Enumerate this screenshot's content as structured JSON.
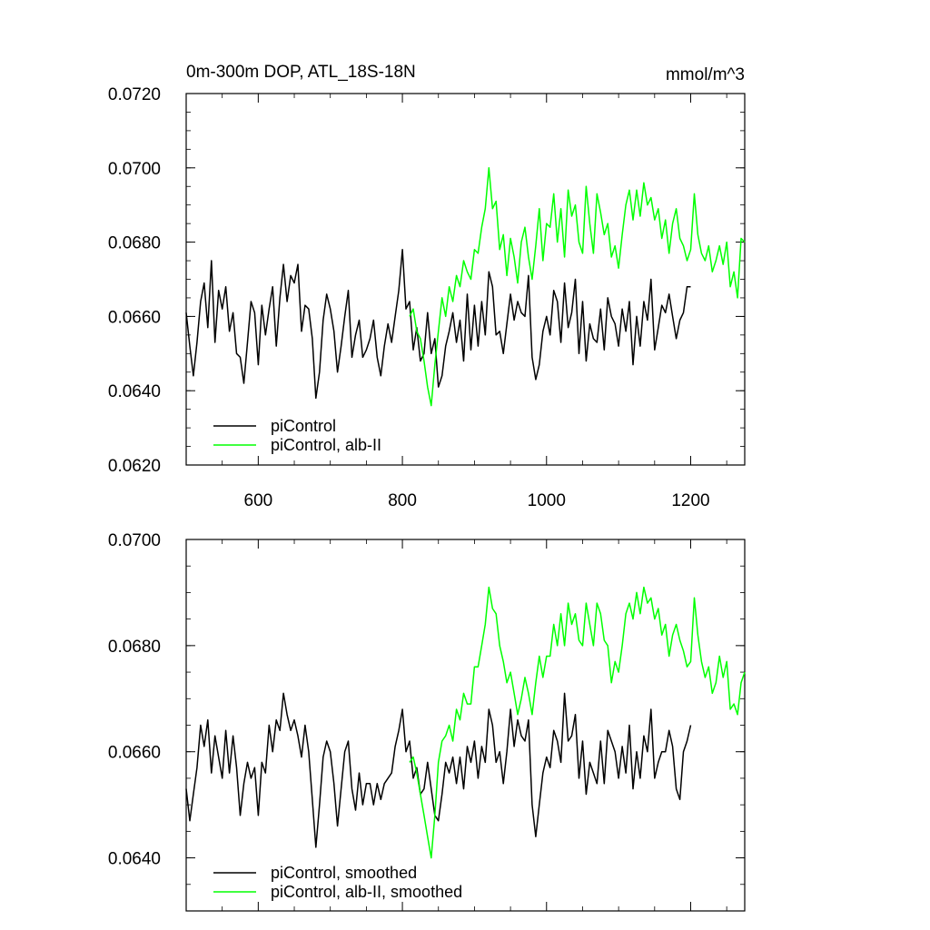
{
  "chart_data": [
    {
      "type": "line",
      "title": "0m-300m DOP, ATL_18S-18N",
      "units": "mmol/m^3",
      "xlim": [
        500,
        1275
      ],
      "ylim": [
        0.062,
        0.072
      ],
      "x_ticks": [
        600,
        800,
        1000,
        1200
      ],
      "x_tick_labels": [
        "600",
        "800",
        "1000",
        "1200"
      ],
      "y_ticks": [
        0.062,
        0.064,
        0.066,
        0.068,
        0.07,
        0.072
      ],
      "y_tick_labels": [
        "0.0620",
        "0.0640",
        "0.0660",
        "0.0680",
        "0.0700",
        "0.0720"
      ],
      "legend": [
        "piControl",
        "piControl, alb-II"
      ],
      "legend_position": "bottom-left",
      "series": [
        {
          "name": "piControl",
          "color": "#000000",
          "x": [
            500,
            505,
            510,
            515,
            520,
            525,
            530,
            535,
            540,
            545,
            550,
            555,
            560,
            565,
            570,
            575,
            580,
            585,
            590,
            595,
            600,
            605,
            610,
            615,
            620,
            625,
            630,
            635,
            640,
            645,
            650,
            655,
            660,
            665,
            670,
            675,
            680,
            685,
            690,
            695,
            700,
            705,
            710,
            715,
            720,
            725,
            730,
            735,
            740,
            745,
            750,
            755,
            760,
            765,
            770,
            775,
            780,
            785,
            790,
            795,
            800,
            805,
            810,
            815,
            820,
            825,
            830,
            835,
            840,
            845,
            850,
            855,
            860,
            865,
            870,
            875,
            880,
            885,
            890,
            895,
            900,
            905,
            910,
            915,
            920,
            925,
            930,
            935,
            940,
            945,
            950,
            955,
            960,
            965,
            970,
            975,
            980,
            985,
            990,
            995,
            1000,
            1005,
            1010,
            1015,
            1020,
            1025,
            1030,
            1035,
            1040,
            1045,
            1050,
            1055,
            1060,
            1065,
            1070,
            1075,
            1080,
            1085,
            1090,
            1095,
            1100,
            1105,
            1110,
            1115,
            1120,
            1125,
            1130,
            1135,
            1140,
            1145,
            1150,
            1155,
            1160,
            1165,
            1170,
            1175,
            1180,
            1185,
            1190,
            1195,
            1200
          ],
          "values": [
            0.0661,
            0.0652,
            0.0644,
            0.0653,
            0.0664,
            0.0669,
            0.0657,
            0.0675,
            0.0653,
            0.0667,
            0.0662,
            0.0668,
            0.0656,
            0.0661,
            0.065,
            0.0649,
            0.0642,
            0.0653,
            0.0664,
            0.0661,
            0.0647,
            0.0663,
            0.0655,
            0.0662,
            0.0668,
            0.0652,
            0.0665,
            0.0674,
            0.0664,
            0.0671,
            0.0669,
            0.0674,
            0.0656,
            0.0663,
            0.0662,
            0.0654,
            0.0638,
            0.0645,
            0.0659,
            0.0666,
            0.0662,
            0.0656,
            0.0645,
            0.0652,
            0.066,
            0.0667,
            0.0649,
            0.0655,
            0.0659,
            0.0649,
            0.0651,
            0.0654,
            0.0659,
            0.0649,
            0.0644,
            0.0652,
            0.0658,
            0.0653,
            0.066,
            0.0667,
            0.0678,
            0.0662,
            0.0664,
            0.0651,
            0.0657,
            0.0648,
            0.065,
            0.0661,
            0.065,
            0.0654,
            0.0641,
            0.0644,
            0.0652,
            0.0656,
            0.0661,
            0.0653,
            0.0659,
            0.0648,
            0.0666,
            0.0651,
            0.0663,
            0.0652,
            0.0664,
            0.0655,
            0.0672,
            0.0668,
            0.0655,
            0.0656,
            0.065,
            0.0658,
            0.0666,
            0.0659,
            0.0664,
            0.0661,
            0.066,
            0.0671,
            0.0649,
            0.0643,
            0.0647,
            0.0656,
            0.066,
            0.0655,
            0.0667,
            0.0664,
            0.0653,
            0.0669,
            0.0657,
            0.0661,
            0.067,
            0.065,
            0.0664,
            0.0648,
            0.0658,
            0.0654,
            0.0653,
            0.0662,
            0.0651,
            0.0665,
            0.066,
            0.0658,
            0.0652,
            0.0662,
            0.0656,
            0.0664,
            0.0647,
            0.066,
            0.0652,
            0.0664,
            0.0659,
            0.067,
            0.0651,
            0.0657,
            0.0663,
            0.0661,
            0.0666,
            0.066,
            0.0654,
            0.0659,
            0.0661,
            0.0668,
            0.0668
          ]
        },
        {
          "name": "piControl, alb-II",
          "color": "#00ff00",
          "x": [
            810,
            815,
            820,
            825,
            830,
            835,
            840,
            845,
            850,
            855,
            860,
            865,
            870,
            875,
            880,
            885,
            890,
            895,
            900,
            905,
            910,
            915,
            920,
            925,
            930,
            935,
            940,
            945,
            950,
            955,
            960,
            965,
            970,
            975,
            980,
            985,
            990,
            995,
            1000,
            1005,
            1010,
            1015,
            1020,
            1025,
            1030,
            1035,
            1040,
            1045,
            1050,
            1055,
            1060,
            1065,
            1070,
            1075,
            1080,
            1085,
            1090,
            1095,
            1100,
            1105,
            1110,
            1115,
            1120,
            1125,
            1130,
            1135,
            1140,
            1145,
            1150,
            1155,
            1160,
            1165,
            1170,
            1175,
            1180,
            1185,
            1190,
            1195,
            1200,
            1205,
            1210,
            1215,
            1220,
            1225,
            1230,
            1235,
            1240,
            1245,
            1250,
            1255,
            1260,
            1265,
            1270,
            1275
          ],
          "values": [
            0.066,
            0.0662,
            0.0656,
            0.0654,
            0.0648,
            0.0641,
            0.0636,
            0.0647,
            0.0656,
            0.0665,
            0.066,
            0.0668,
            0.0664,
            0.0671,
            0.0668,
            0.0675,
            0.0672,
            0.067,
            0.0678,
            0.0677,
            0.0684,
            0.0689,
            0.07,
            0.0689,
            0.0691,
            0.0678,
            0.0682,
            0.0671,
            0.0681,
            0.0676,
            0.0669,
            0.068,
            0.0684,
            0.0676,
            0.067,
            0.0679,
            0.0689,
            0.0675,
            0.0685,
            0.0684,
            0.0693,
            0.068,
            0.0689,
            0.0676,
            0.0694,
            0.0687,
            0.069,
            0.068,
            0.0677,
            0.0695,
            0.0685,
            0.0677,
            0.0693,
            0.0688,
            0.0682,
            0.0685,
            0.0676,
            0.0679,
            0.0673,
            0.0682,
            0.069,
            0.0694,
            0.0686,
            0.0694,
            0.0687,
            0.0696,
            0.069,
            0.0692,
            0.0686,
            0.0689,
            0.0681,
            0.0686,
            0.0677,
            0.0685,
            0.0689,
            0.0681,
            0.0679,
            0.0675,
            0.0678,
            0.0693,
            0.0682,
            0.0677,
            0.0675,
            0.0679,
            0.0672,
            0.0675,
            0.0679,
            0.0674,
            0.068,
            0.0668,
            0.0672,
            0.0665,
            0.0681,
            0.068
          ]
        }
      ]
    },
    {
      "type": "line",
      "title": "",
      "xlim": [
        500,
        1275
      ],
      "ylim": [
        0.063,
        0.07
      ],
      "x_ticks": [
        600,
        800,
        1000,
        1200
      ],
      "y_ticks": [
        0.064,
        0.066,
        0.068,
        0.07
      ],
      "y_tick_labels": [
        "0.0640",
        "0.0660",
        "0.0680",
        "0.0700"
      ],
      "legend": [
        "piControl, smoothed",
        "piControl, alb-II, smoothed"
      ],
      "legend_position": "bottom-left",
      "series": [
        {
          "name": "piControl, smoothed",
          "color": "#000000",
          "x": [
            500,
            505,
            510,
            515,
            520,
            525,
            530,
            535,
            540,
            545,
            550,
            555,
            560,
            565,
            570,
            575,
            580,
            585,
            590,
            595,
            600,
            605,
            610,
            615,
            620,
            625,
            630,
            635,
            640,
            645,
            650,
            655,
            660,
            665,
            670,
            675,
            680,
            685,
            690,
            695,
            700,
            705,
            710,
            715,
            720,
            725,
            730,
            735,
            740,
            745,
            750,
            755,
            760,
            765,
            770,
            775,
            780,
            785,
            790,
            795,
            800,
            805,
            810,
            815,
            820,
            825,
            830,
            835,
            840,
            845,
            850,
            855,
            860,
            865,
            870,
            875,
            880,
            885,
            890,
            895,
            900,
            905,
            910,
            915,
            920,
            925,
            930,
            935,
            940,
            945,
            950,
            955,
            960,
            965,
            970,
            975,
            980,
            985,
            990,
            995,
            1000,
            1005,
            1010,
            1015,
            1020,
            1025,
            1030,
            1035,
            1040,
            1045,
            1050,
            1055,
            1060,
            1065,
            1070,
            1075,
            1080,
            1085,
            1090,
            1095,
            1100,
            1105,
            1110,
            1115,
            1120,
            1125,
            1130,
            1135,
            1140,
            1145,
            1150,
            1155,
            1160,
            1165,
            1170,
            1175,
            1180,
            1185,
            1190,
            1195,
            1200
          ],
          "values": [
            0.0653,
            0.0647,
            0.0652,
            0.0657,
            0.0665,
            0.0661,
            0.0666,
            0.0656,
            0.0663,
            0.0659,
            0.0655,
            0.0664,
            0.0656,
            0.0663,
            0.0657,
            0.0648,
            0.0654,
            0.0658,
            0.0655,
            0.0657,
            0.0648,
            0.0658,
            0.0656,
            0.0665,
            0.066,
            0.0666,
            0.0664,
            0.0671,
            0.0667,
            0.0664,
            0.0666,
            0.0663,
            0.0659,
            0.0665,
            0.066,
            0.0651,
            0.0642,
            0.065,
            0.0659,
            0.0662,
            0.066,
            0.0654,
            0.0646,
            0.0653,
            0.066,
            0.0662,
            0.0653,
            0.0649,
            0.0656,
            0.065,
            0.0654,
            0.0654,
            0.065,
            0.0654,
            0.0651,
            0.0654,
            0.0655,
            0.0656,
            0.0661,
            0.0664,
            0.0668,
            0.066,
            0.0662,
            0.0655,
            0.0657,
            0.0652,
            0.0653,
            0.0658,
            0.0653,
            0.0648,
            0.0647,
            0.0652,
            0.0658,
            0.0656,
            0.0659,
            0.0654,
            0.0659,
            0.0653,
            0.0661,
            0.0658,
            0.0662,
            0.0655,
            0.0661,
            0.0658,
            0.0668,
            0.0665,
            0.0658,
            0.066,
            0.0654,
            0.066,
            0.0668,
            0.0661,
            0.0666,
            0.0663,
            0.0662,
            0.0666,
            0.065,
            0.0644,
            0.065,
            0.0656,
            0.0659,
            0.0657,
            0.0664,
            0.0662,
            0.0658,
            0.0671,
            0.0662,
            0.0663,
            0.0667,
            0.0655,
            0.0662,
            0.0652,
            0.0658,
            0.0656,
            0.0654,
            0.0662,
            0.0654,
            0.0664,
            0.0662,
            0.066,
            0.0655,
            0.0661,
            0.0656,
            0.0665,
            0.0653,
            0.066,
            0.0655,
            0.0663,
            0.066,
            0.0668,
            0.0655,
            0.0658,
            0.066,
            0.066,
            0.0664,
            0.0661,
            0.0653,
            0.0651,
            0.066,
            0.0662,
            0.0665
          ]
        },
        {
          "name": "piControl, alb-II, smoothed",
          "color": "#00ff00",
          "x": [
            810,
            815,
            820,
            825,
            830,
            835,
            840,
            845,
            850,
            855,
            860,
            865,
            870,
            875,
            880,
            885,
            890,
            895,
            900,
            905,
            910,
            915,
            920,
            925,
            930,
            935,
            940,
            945,
            950,
            955,
            960,
            965,
            970,
            975,
            980,
            985,
            990,
            995,
            1000,
            1005,
            1010,
            1015,
            1020,
            1025,
            1030,
            1035,
            1040,
            1045,
            1050,
            1055,
            1060,
            1065,
            1070,
            1075,
            1080,
            1085,
            1090,
            1095,
            1100,
            1105,
            1110,
            1115,
            1120,
            1125,
            1130,
            1135,
            1140,
            1145,
            1150,
            1155,
            1160,
            1165,
            1170,
            1175,
            1180,
            1185,
            1190,
            1195,
            1200,
            1205,
            1210,
            1215,
            1220,
            1225,
            1230,
            1235,
            1240,
            1245,
            1250,
            1255,
            1260,
            1265,
            1270,
            1275
          ],
          "values": [
            0.0658,
            0.0659,
            0.0656,
            0.0652,
            0.0648,
            0.0644,
            0.064,
            0.0648,
            0.0658,
            0.0662,
            0.0663,
            0.0665,
            0.0662,
            0.0668,
            0.0666,
            0.0671,
            0.0669,
            0.0669,
            0.0676,
            0.0676,
            0.068,
            0.0684,
            0.0691,
            0.0687,
            0.0686,
            0.068,
            0.0677,
            0.0673,
            0.0675,
            0.0671,
            0.0667,
            0.067,
            0.0674,
            0.0671,
            0.0667,
            0.0673,
            0.0678,
            0.0674,
            0.0678,
            0.0678,
            0.0684,
            0.068,
            0.0686,
            0.068,
            0.0688,
            0.0684,
            0.0686,
            0.0681,
            0.068,
            0.0688,
            0.0684,
            0.068,
            0.0688,
            0.0686,
            0.0681,
            0.068,
            0.0673,
            0.0677,
            0.0675,
            0.068,
            0.0686,
            0.0688,
            0.0685,
            0.069,
            0.0686,
            0.0691,
            0.0688,
            0.0689,
            0.0685,
            0.0687,
            0.0682,
            0.0684,
            0.0678,
            0.0682,
            0.0684,
            0.0681,
            0.0679,
            0.0676,
            0.0677,
            0.0689,
            0.0682,
            0.0677,
            0.0674,
            0.0676,
            0.0671,
            0.0673,
            0.0678,
            0.0674,
            0.0677,
            0.0668,
            0.0669,
            0.0667,
            0.0673,
            0.0675
          ]
        }
      ]
    }
  ]
}
